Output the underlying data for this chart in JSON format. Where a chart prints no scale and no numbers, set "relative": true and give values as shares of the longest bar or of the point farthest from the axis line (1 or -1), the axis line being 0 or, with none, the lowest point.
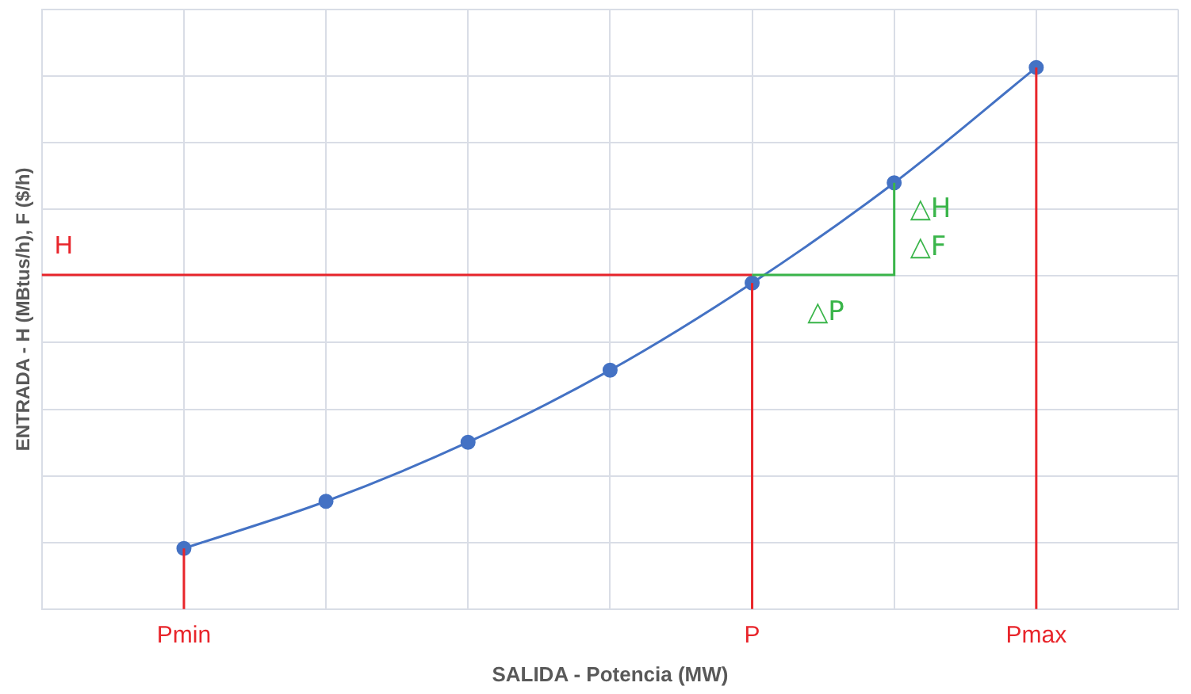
{
  "chart_data": {
    "type": "line",
    "relative": true,
    "xlabel": "SALIDA - Potencia (MW)",
    "ylabel": "ENTRADA - H (MBtus/h), F ($/h)",
    "categories": [
      null,
      "Pmin",
      null,
      null,
      null,
      "P",
      null,
      "Pmax",
      null
    ],
    "series": [
      {
        "color": "#4472c4",
        "values": [
          null,
          0.112,
          0.199,
          0.308,
          0.441,
          0.602,
          0.787,
          1,
          null
        ]
      }
    ],
    "ref_lines": [
      {
        "axis": "y",
        "value": 0.617,
        "label": "H",
        "color": "#e8252b"
      },
      {
        "axis": "x",
        "value": "Pmin",
        "color": "#e8252b"
      },
      {
        "axis": "x",
        "value": "P",
        "color": "#e8252b"
      },
      {
        "axis": "x",
        "value": "Pmax",
        "color": "#e8252b"
      }
    ],
    "annotations": [
      "△H",
      "△F",
      "△P"
    ],
    "grid": true,
    "marker": "circle",
    "line_style": "solid",
    "legend": false
  }
}
